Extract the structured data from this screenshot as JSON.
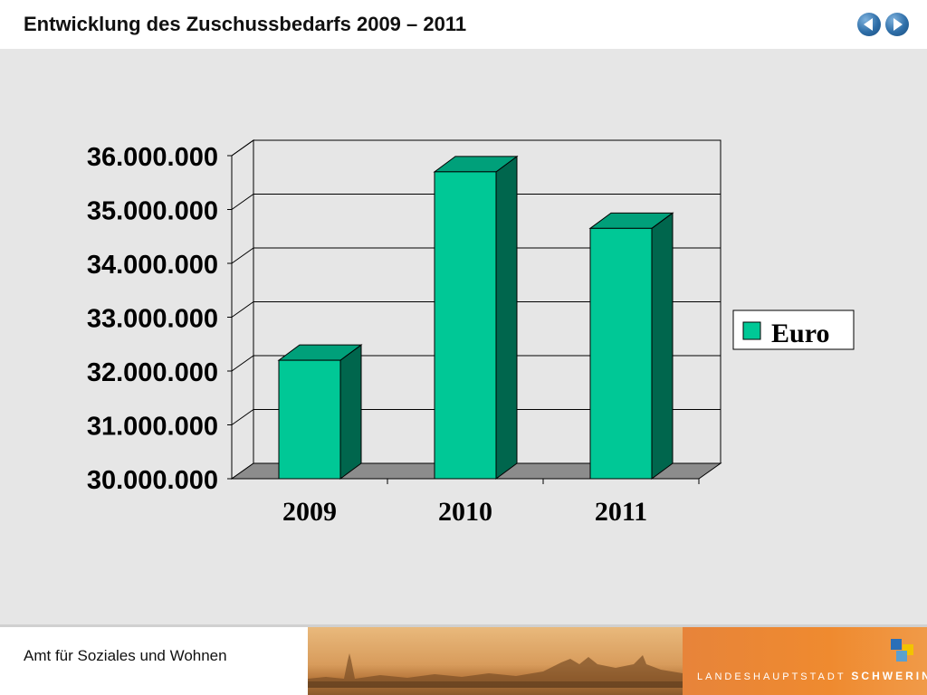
{
  "header": {
    "title": "Entwicklung des Zuschussbedarfs 2009 – 2011",
    "nav_prev_icon": "arrow-left-icon",
    "nav_next_icon": "arrow-right-icon"
  },
  "chart_data": {
    "type": "bar",
    "categories": [
      "2009",
      "2010",
      "2011"
    ],
    "series": [
      {
        "name": "Euro",
        "values": [
          32200000,
          35700000,
          34650000
        ],
        "color": "#00c896"
      }
    ],
    "ylim": [
      30000000,
      36000000
    ],
    "yticks": [
      "30.000.000",
      "31.000.000",
      "32.000.000",
      "33.000.000",
      "34.000.000",
      "35.000.000",
      "36.000.000"
    ],
    "grid": true,
    "legend": "right"
  },
  "footer": {
    "text": "Amt für Soziales und Wohnen",
    "brand_prefix": "LANDESHAUPTSTADT",
    "brand_name": "SCHWERIN"
  }
}
